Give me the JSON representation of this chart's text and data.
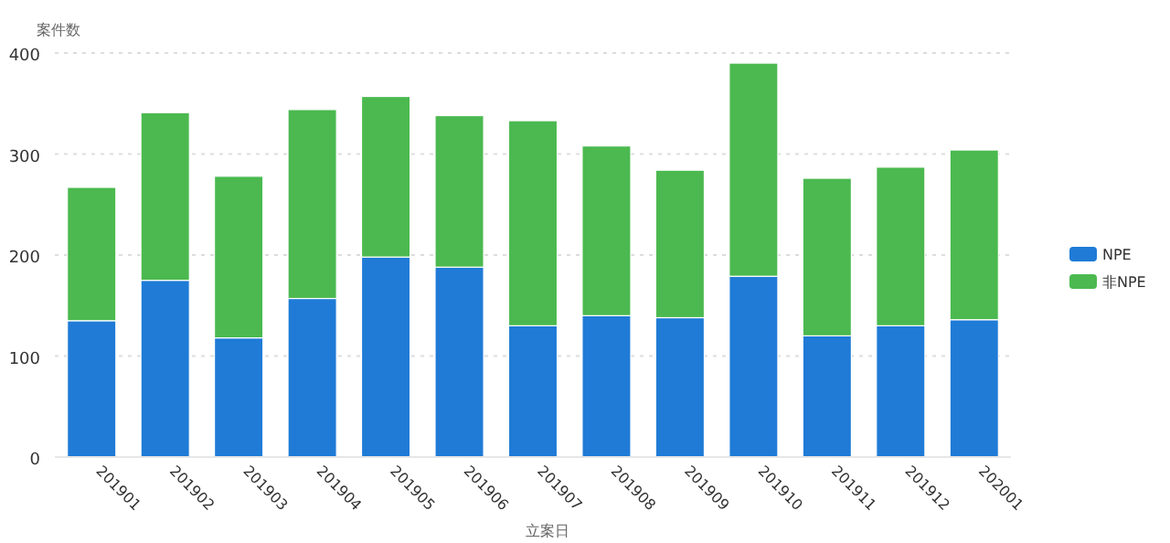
{
  "chart_data": {
    "type": "bar",
    "stacked": true,
    "ylabel": "案件数",
    "xlabel": "立案日",
    "categories": [
      "201901",
      "201902",
      "201903",
      "201904",
      "201905",
      "201906",
      "201907",
      "201908",
      "201909",
      "201910",
      "201911",
      "201912",
      "202001"
    ],
    "series": [
      {
        "name": "NPE",
        "color": "#1f7bd6",
        "values": [
          135,
          175,
          118,
          157,
          198,
          188,
          130,
          140,
          138,
          179,
          120,
          130,
          136
        ]
      },
      {
        "name": "非NPE",
        "color": "#4bb94f",
        "values": [
          132,
          166,
          160,
          187,
          159,
          150,
          203,
          168,
          146,
          211,
          156,
          157,
          168
        ]
      }
    ],
    "ylim": [
      0,
      400
    ],
    "yticks": [
      0,
      100,
      200,
      300,
      400
    ],
    "grid": "y",
    "legend": "right"
  }
}
